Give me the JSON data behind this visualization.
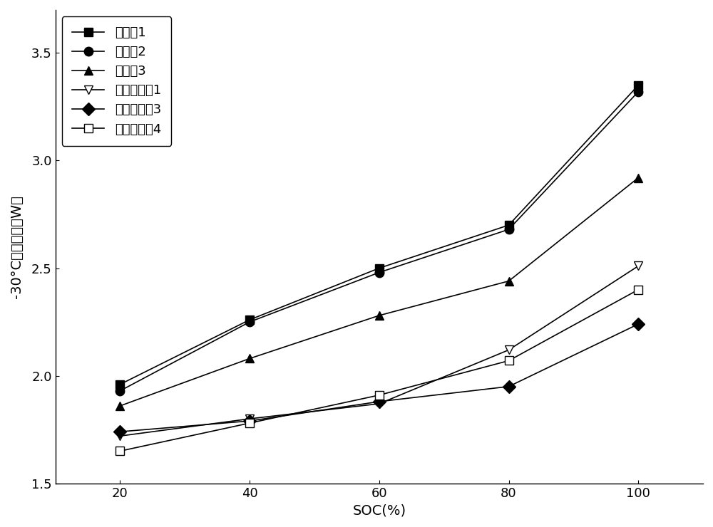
{
  "x": [
    20,
    40,
    60,
    80,
    100
  ],
  "series": [
    {
      "label": "实施例1",
      "values": [
        1.96,
        2.26,
        2.5,
        2.7,
        3.35
      ],
      "marker": "s",
      "filled": true,
      "color": "#000000"
    },
    {
      "label": "实施例2",
      "values": [
        1.93,
        2.25,
        2.48,
        2.68,
        3.32
      ],
      "marker": "o",
      "filled": true,
      "color": "#000000"
    },
    {
      "label": "实施例3",
      "values": [
        1.86,
        2.08,
        2.28,
        2.44,
        2.92
      ],
      "marker": "^",
      "filled": true,
      "color": "#000000"
    },
    {
      "label": "对比实施例1",
      "values": [
        1.72,
        1.8,
        1.87,
        2.12,
        2.51
      ],
      "marker": "v",
      "filled": false,
      "color": "#000000"
    },
    {
      "label": "对比实施例3",
      "values": [
        1.74,
        1.79,
        1.88,
        1.95,
        2.24
      ],
      "marker": "D",
      "filled": true,
      "color": "#000000"
    },
    {
      "label": "对比实施例4",
      "values": [
        1.65,
        1.78,
        1.91,
        2.07,
        2.4
      ],
      "marker": "s",
      "filled": false,
      "color": "#000000"
    }
  ],
  "xlabel": "SOC(%)",
  "ylabel": "-30°C下的输出（W）",
  "xlim": [
    10,
    110
  ],
  "ylim": [
    1.5,
    3.7
  ],
  "yticks": [
    1.5,
    2.0,
    2.5,
    3.0,
    3.5
  ],
  "xticks": [
    20,
    40,
    60,
    80,
    100
  ],
  "legend_loc": "upper left",
  "figsize": [
    10.0,
    7.4
  ],
  "dpi": 100
}
